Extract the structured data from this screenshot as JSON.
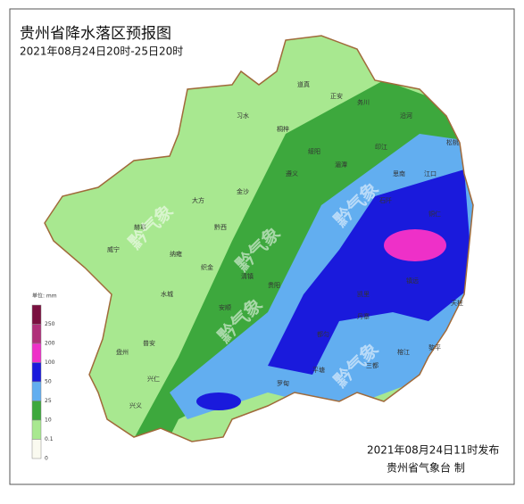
{
  "title": "贵州省降水落区预报图",
  "subtitle": "2021年08月24日20时-25日20时",
  "watermark": "黔气象",
  "legend": {
    "unit": "单位: mm",
    "levels": [
      {
        "label": "250",
        "color": "#7a1040"
      },
      {
        "label": "200",
        "color": "#b0307a"
      },
      {
        "label": "100",
        "color": "#ee30c8"
      },
      {
        "label": "50",
        "color": "#1a1adc"
      },
      {
        "label": "25",
        "color": "#62aef0"
      },
      {
        "label": "10",
        "color": "#3da83d"
      },
      {
        "label": "0.1",
        "color": "#a8e890"
      },
      {
        "label": "0",
        "color": "#fafaf0"
      }
    ]
  },
  "places": [
    "道真",
    "正安",
    "务川",
    "沿河",
    "印江",
    "松桃",
    "江口",
    "铜仁",
    "习水",
    "桐梓",
    "绥阳",
    "遵义",
    "湄潭",
    "思南",
    "石阡",
    "金沙",
    "大方",
    "黔西",
    "赫章",
    "威宁",
    "纳雍",
    "织金",
    "清镇",
    "贵阳",
    "凯里",
    "镇远",
    "天柱",
    "黎平",
    "榕江",
    "丹寨",
    "三都",
    "平塘",
    "罗甸",
    "兴义",
    "兴仁",
    "普安",
    "盘州",
    "水城",
    "安顺",
    "都匀"
  ],
  "footer": {
    "issued": "2021年08月24日11时发布",
    "agency": "贵州省气象台  制"
  }
}
